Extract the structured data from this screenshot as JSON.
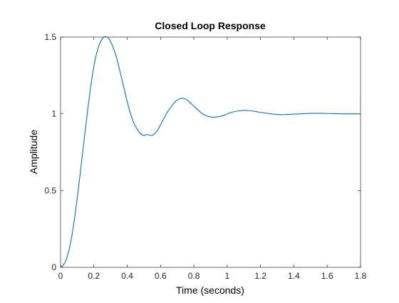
{
  "chart_data": {
    "type": "line",
    "title": "Closed Loop Response",
    "xlabel": "Time (seconds)",
    "ylabel": "Amplitude",
    "xlim": [
      0,
      1.8
    ],
    "ylim": [
      0,
      1.5
    ],
    "xticks": [
      0,
      0.2,
      0.4,
      0.6,
      0.8,
      1,
      1.2,
      1.4,
      1.6,
      1.8
    ],
    "xtick_labels": [
      "0",
      "0.2",
      "0.4",
      "0.6",
      "0.8",
      "1",
      "1.2",
      "1.4",
      "1.6",
      "1.8"
    ],
    "yticks": [
      0,
      0.5,
      1,
      1.5
    ],
    "ytick_labels": [
      "0",
      "0.5",
      "1",
      "1.5"
    ],
    "grid": false,
    "series": [
      {
        "color": "#0072BD",
        "x": [
          0,
          0.02,
          0.04,
          0.06,
          0.08,
          0.1,
          0.12,
          0.14,
          0.16,
          0.18,
          0.2,
          0.22,
          0.24,
          0.26,
          0.28,
          0.29,
          0.3,
          0.32,
          0.34,
          0.36,
          0.38,
          0.4,
          0.42,
          0.44,
          0.46,
          0.48,
          0.5,
          0.52,
          0.55,
          0.58,
          0.6,
          0.62,
          0.64,
          0.66,
          0.68,
          0.7,
          0.72,
          0.74,
          0.76,
          0.78,
          0.8,
          0.82,
          0.84,
          0.86,
          0.88,
          0.9,
          0.92,
          0.94,
          0.96,
          0.98,
          1.0,
          1.02,
          1.04,
          1.07,
          1.1,
          1.14,
          1.18,
          1.22,
          1.26,
          1.3,
          1.34,
          1.38,
          1.42,
          1.46,
          1.5,
          1.55,
          1.6,
          1.65,
          1.7,
          1.75,
          1.8
        ],
        "y": [
          0,
          0.02,
          0.07,
          0.16,
          0.29,
          0.45,
          0.63,
          0.82,
          1.0,
          1.17,
          1.31,
          1.41,
          1.47,
          1.5,
          1.5,
          1.49,
          1.47,
          1.42,
          1.35,
          1.26,
          1.17,
          1.08,
          1.0,
          0.94,
          0.9,
          0.87,
          0.86,
          0.865,
          0.86,
          0.89,
          0.93,
          0.97,
          1.01,
          1.04,
          1.07,
          1.09,
          1.1,
          1.1,
          1.09,
          1.07,
          1.05,
          1.03,
          1.01,
          0.995,
          0.985,
          0.98,
          0.978,
          0.98,
          0.984,
          0.99,
          1.0,
          1.007,
          1.013,
          1.02,
          1.022,
          1.02,
          1.013,
          1.006,
          1.0,
          0.996,
          0.995,
          0.997,
          0.999,
          1.001,
          1.003,
          1.003,
          1.002,
          1.001,
          1.0,
          1.0,
          1.0
        ]
      }
    ]
  }
}
